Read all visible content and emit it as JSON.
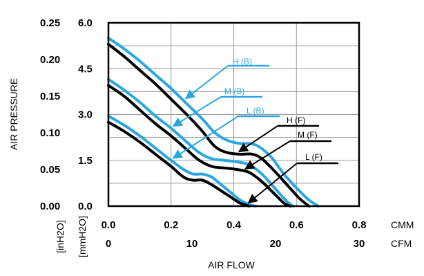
{
  "chart_data": {
    "type": "line",
    "xlabel": "AIR FLOW",
    "ylabel": "AIR PRESSURE",
    "x_axes": {
      "cmm": {
        "unit": "CMM",
        "range": [
          0,
          0.8
        ],
        "ticks": [
          "0.0",
          "0.2",
          "0.4",
          "0.6",
          "0.8"
        ]
      },
      "cfm": {
        "unit": "CFM",
        "range": [
          0,
          30
        ],
        "ticks": [
          "0",
          "10",
          "20",
          "30"
        ]
      }
    },
    "y_axes": {
      "mmh2o": {
        "unit": "[mmH2O]",
        "range": [
          0,
          6.0
        ],
        "ticks": [
          "0.0",
          "1.5",
          "3.0",
          "4.5",
          "6.0"
        ]
      },
      "inh2o": {
        "unit": "[inH2O]",
        "range": [
          0,
          0.25
        ],
        "ticks": [
          "0.00",
          "0.05",
          "0.10",
          "0.15",
          "0.20",
          "0.25"
        ]
      }
    },
    "grid": true,
    "series": [
      {
        "name": "H (B)",
        "color": "#2aa7e0",
        "x_cmm": [
          0.0,
          0.05,
          0.1,
          0.15,
          0.2,
          0.25,
          0.3,
          0.34,
          0.38,
          0.42,
          0.45,
          0.48,
          0.52,
          0.56,
          0.6,
          0.64,
          0.67
        ],
        "y_mmh2o": [
          5.5,
          5.15,
          4.75,
          4.3,
          3.85,
          3.35,
          2.85,
          2.4,
          2.15,
          2.05,
          2.05,
          1.95,
          1.6,
          1.05,
          0.6,
          0.2,
          0.0
        ]
      },
      {
        "name": "H (F)",
        "color": "#000000",
        "x_cmm": [
          0.0,
          0.05,
          0.1,
          0.15,
          0.2,
          0.25,
          0.3,
          0.34,
          0.38,
          0.42,
          0.46,
          0.49,
          0.53,
          0.57,
          0.61,
          0.64
        ],
        "y_mmh2o": [
          5.3,
          4.9,
          4.45,
          4.0,
          3.5,
          3.0,
          2.45,
          1.95,
          1.75,
          1.7,
          1.7,
          1.55,
          1.15,
          0.7,
          0.25,
          0.0
        ]
      },
      {
        "name": "M (B)",
        "color": "#2aa7e0",
        "x_cmm": [
          0.0,
          0.05,
          0.1,
          0.15,
          0.2,
          0.25,
          0.29,
          0.33,
          0.37,
          0.41,
          0.45,
          0.49,
          0.53,
          0.57,
          0.59
        ],
        "y_mmh2o": [
          4.15,
          3.8,
          3.4,
          2.95,
          2.55,
          2.1,
          1.75,
          1.55,
          1.5,
          1.45,
          1.35,
          1.05,
          0.6,
          0.15,
          0.0
        ]
      },
      {
        "name": "M (F)",
        "color": "#000000",
        "x_cmm": [
          0.0,
          0.05,
          0.1,
          0.15,
          0.2,
          0.25,
          0.29,
          0.33,
          0.37,
          0.41,
          0.45,
          0.49,
          0.53,
          0.56,
          0.58
        ],
        "y_mmh2o": [
          3.95,
          3.6,
          3.15,
          2.7,
          2.3,
          1.85,
          1.5,
          1.3,
          1.25,
          1.2,
          1.1,
          0.8,
          0.4,
          0.1,
          0.0
        ]
      },
      {
        "name": "L (B)",
        "color": "#2aa7e0",
        "x_cmm": [
          0.0,
          0.05,
          0.1,
          0.15,
          0.2,
          0.24,
          0.27,
          0.3,
          0.33,
          0.36,
          0.39,
          0.42,
          0.45,
          0.47
        ],
        "y_mmh2o": [
          2.95,
          2.65,
          2.3,
          1.9,
          1.5,
          1.2,
          1.05,
          1.05,
          0.95,
          0.7,
          0.45,
          0.2,
          0.05,
          0.0
        ]
      },
      {
        "name": "L (F)",
        "color": "#000000",
        "x_cmm": [
          0.0,
          0.05,
          0.1,
          0.15,
          0.2,
          0.24,
          0.27,
          0.3,
          0.33,
          0.36,
          0.39,
          0.42,
          0.45
        ],
        "y_mmh2o": [
          2.75,
          2.45,
          2.1,
          1.7,
          1.3,
          0.95,
          0.85,
          0.85,
          0.7,
          0.5,
          0.3,
          0.1,
          0.0
        ]
      }
    ],
    "annotations": [
      {
        "text": "H (B)",
        "series": "H (B)",
        "points_at_x_cmm": 0.24,
        "group": "B"
      },
      {
        "text": "M (B)",
        "series": "M (B)",
        "points_at_x_cmm": 0.2,
        "group": "B"
      },
      {
        "text": "L (B)",
        "series": "L (B)",
        "points_at_x_cmm": 0.2,
        "group": "B"
      },
      {
        "text": "H (F)",
        "series": "H (F)",
        "points_at_x_cmm": 0.41,
        "group": "F"
      },
      {
        "text": "M (F)",
        "series": "M (F)",
        "points_at_x_cmm": 0.43,
        "group": "F"
      },
      {
        "text": "L (F)",
        "series": "L (F)",
        "points_at_x_cmm": 0.44,
        "group": "F"
      }
    ]
  }
}
